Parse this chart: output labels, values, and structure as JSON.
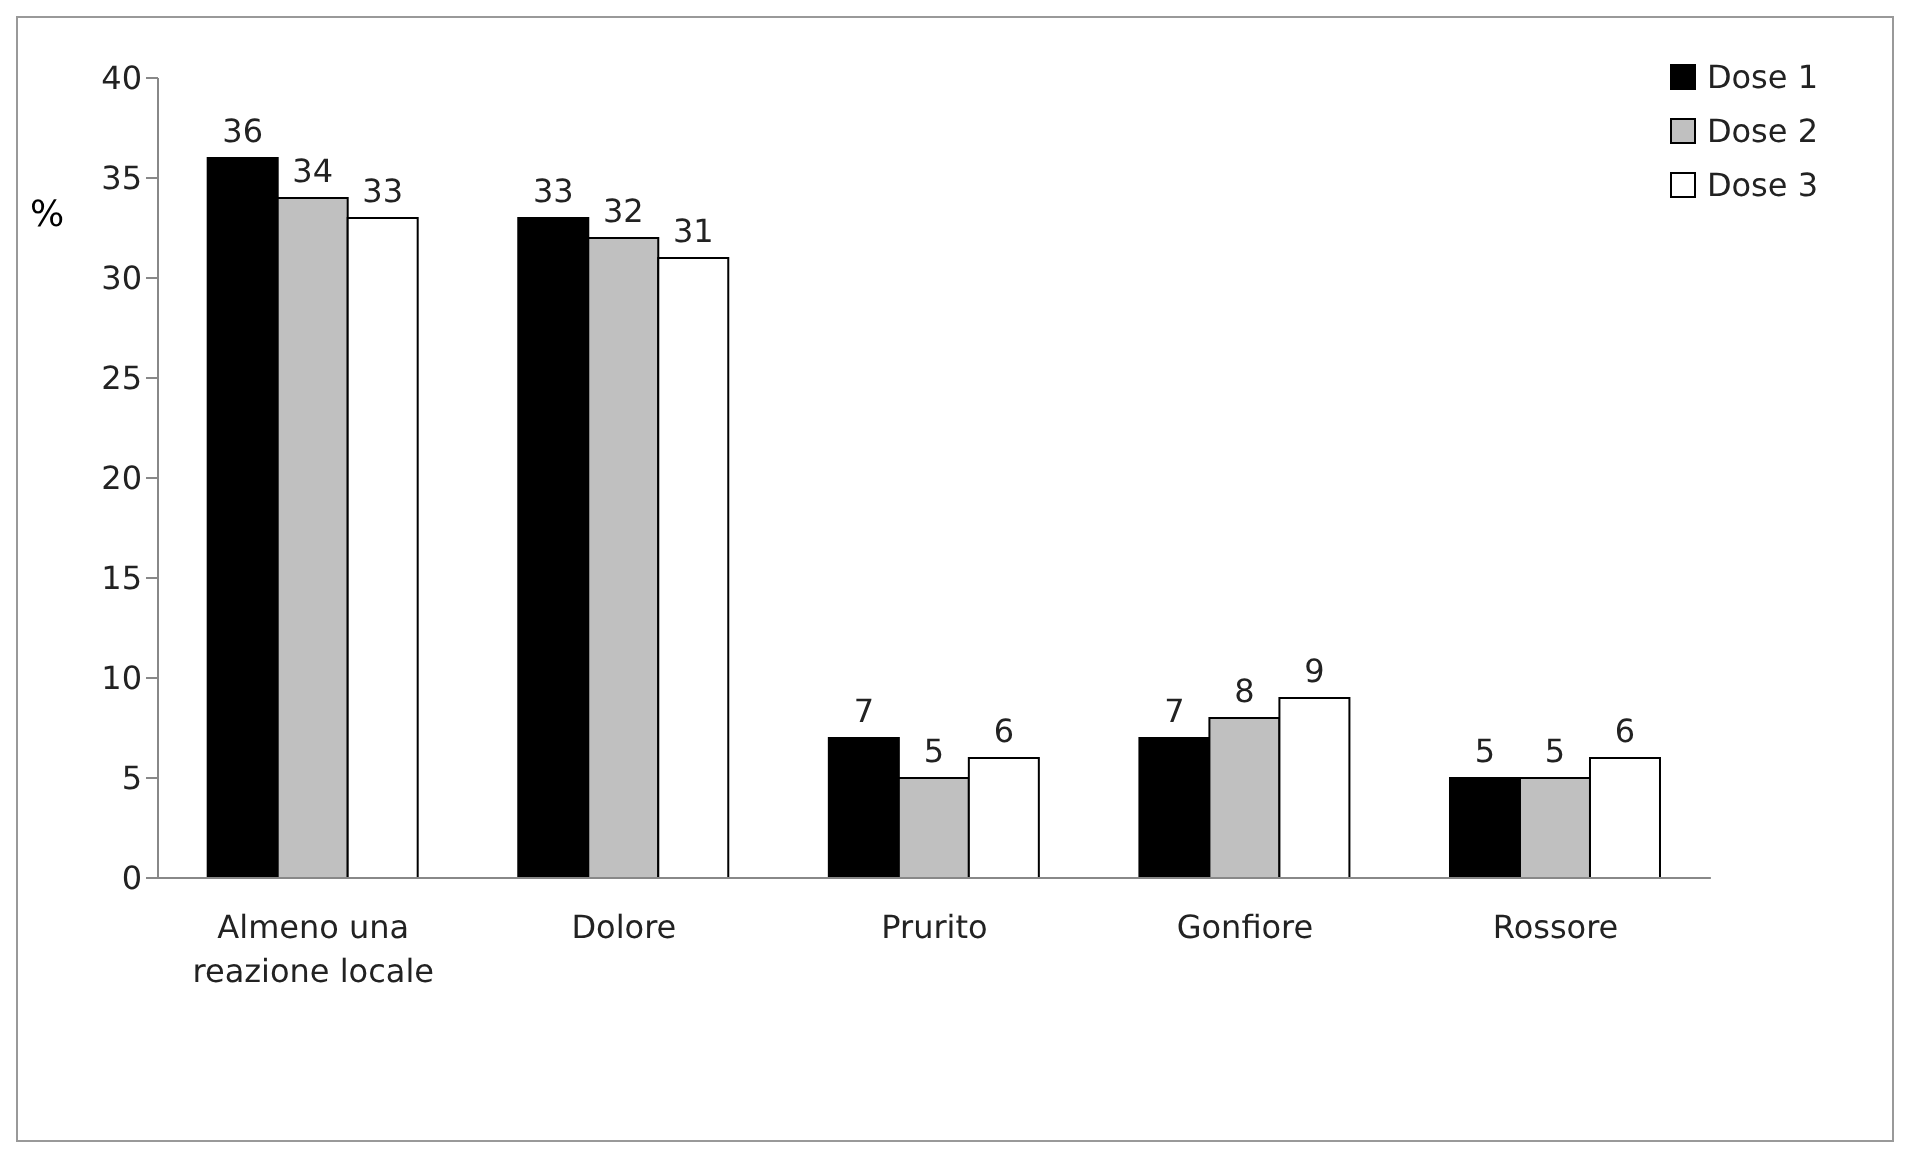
{
  "chart_data": {
    "type": "bar",
    "ylabel": "%",
    "categories": [
      "Almeno una reazione locale",
      "Dolore",
      "Prurito",
      "Gonfiore",
      "Rossore"
    ],
    "series": [
      {
        "name": "Dose 1",
        "color": "#000000",
        "values": [
          36,
          33,
          7,
          7,
          5
        ]
      },
      {
        "name": "Dose 2",
        "color": "#c0c0c0",
        "values": [
          34,
          32,
          5,
          8,
          5
        ]
      },
      {
        "name": "Dose 3",
        "color": "#ffffff",
        "values": [
          33,
          31,
          6,
          9,
          6
        ]
      }
    ],
    "ylim": [
      0,
      40
    ],
    "yticks": [
      0,
      5,
      10,
      15,
      20,
      25,
      30,
      35,
      40
    ],
    "grid": false,
    "legend": "top right",
    "data_labels": true
  }
}
